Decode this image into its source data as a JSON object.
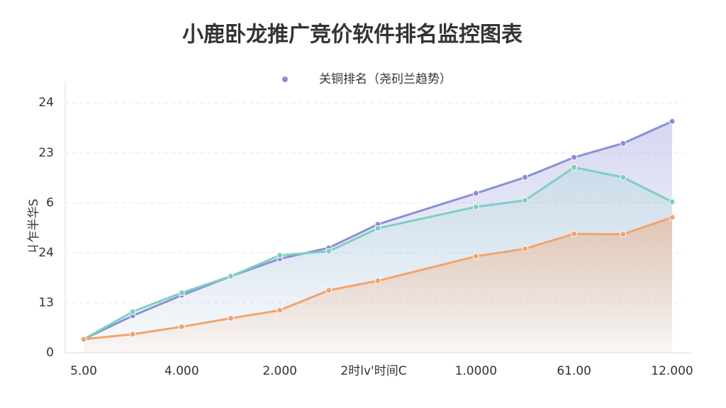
{
  "chart_data": {
    "type": "line",
    "title": "小鹿卧龙推广竞价软件排名监控图表",
    "legend": "关铜排名（尧矵兰趋势）",
    "ylabel": "ㄐ乍半华S",
    "xlabel": "2时lv'时间C",
    "xlim": [
      0,
      6
    ],
    "xticks": [
      {
        "value": 0,
        "label": "5.00"
      },
      {
        "value": 1,
        "label": "4.000"
      },
      {
        "value": 2,
        "label": "2.000"
      },
      {
        "value": 4,
        "label": "1.0000"
      },
      {
        "value": 5,
        "label": "61.00"
      },
      {
        "value": 6,
        "label": "12.000"
      }
    ],
    "ylim": [
      0,
      5.4
    ],
    "yticks": [
      0,
      {
        "value": 1,
        "label": "13"
      },
      {
        "value": 2,
        "label": "24"
      },
      {
        "value": 3,
        "label": "6"
      },
      {
        "value": 4,
        "label": "23"
      },
      {
        "value": 5,
        "label": "24"
      }
    ],
    "grid": true,
    "x": [
      0,
      0.5,
      1,
      1.5,
      2,
      2.5,
      3,
      4,
      4.5,
      5,
      5.5,
      6
    ],
    "series": [
      {
        "color": "#8b8fd6",
        "values": [
          0.27,
          0.74,
          1.15,
          1.53,
          1.88,
          2.1,
          2.57,
          3.19,
          3.51,
          3.91,
          4.19,
          4.63
        ]
      },
      {
        "color": "#7ecfc0",
        "values": [
          0.27,
          0.82,
          1.2,
          1.53,
          1.95,
          2.03,
          2.49,
          2.92,
          3.05,
          3.71,
          3.51,
          3.02
        ]
      },
      {
        "color": "#f0a470",
        "values": [
          0.27,
          0.37,
          0.52,
          0.69,
          0.85,
          1.25,
          1.44,
          1.93,
          2.08,
          2.38,
          2.37,
          2.71
        ]
      }
    ]
  }
}
